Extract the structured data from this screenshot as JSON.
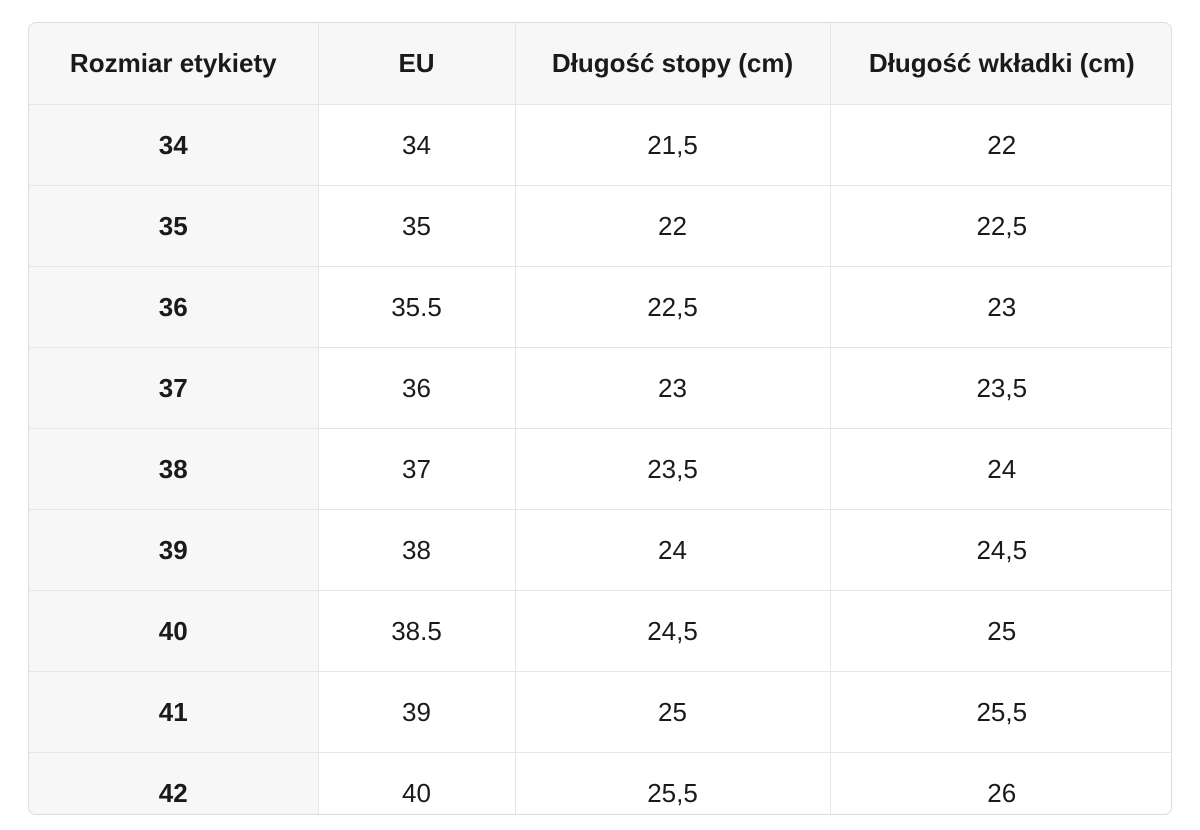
{
  "table": {
    "header": [
      "Rozmiar etykiety",
      "EU",
      "Długość stopy (cm)",
      "Długość wkładki (cm)"
    ],
    "rows": [
      [
        "34",
        "34",
        "21,5",
        "22"
      ],
      [
        "35",
        "35",
        "22",
        "22,5"
      ],
      [
        "36",
        "35.5",
        "22,5",
        "23"
      ],
      [
        "37",
        "36",
        "23",
        "23,5"
      ],
      [
        "38",
        "37",
        "23,5",
        "24"
      ],
      [
        "39",
        "38",
        "24",
        "24,5"
      ],
      [
        "40",
        "38.5",
        "24,5",
        "25"
      ],
      [
        "41",
        "39",
        "25",
        "25,5"
      ],
      [
        "42",
        "40",
        "25,5",
        "26"
      ]
    ]
  }
}
